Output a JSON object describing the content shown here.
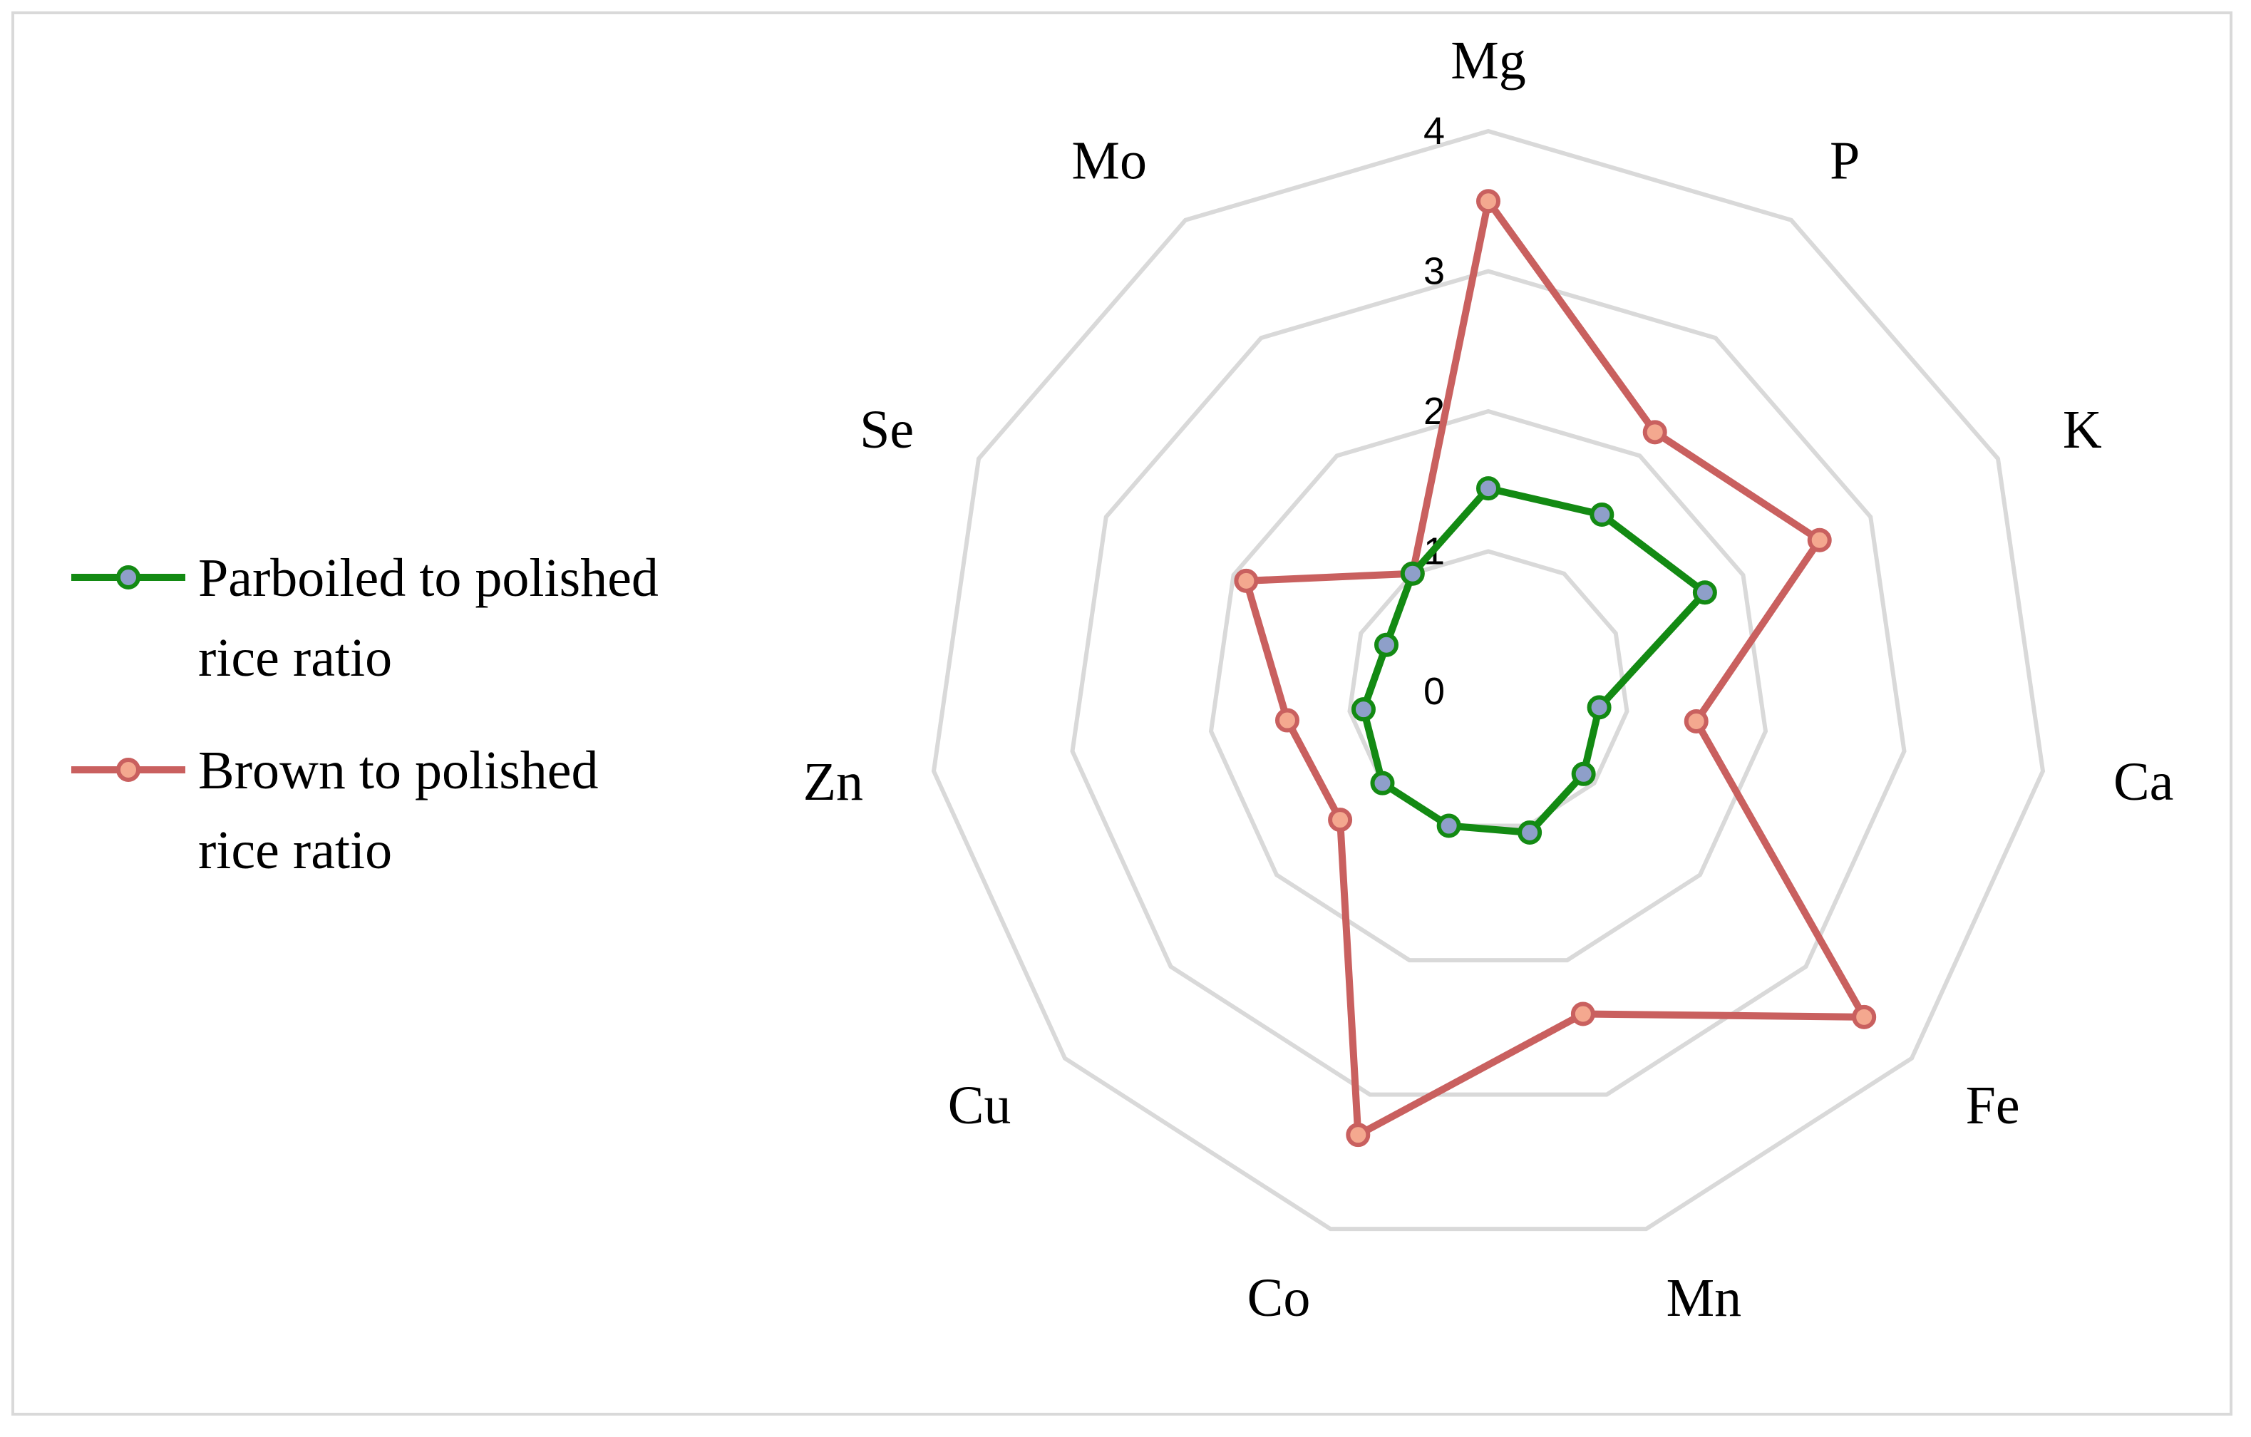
{
  "chart_data": {
    "type": "radar",
    "title": "",
    "categories": [
      "Mg",
      "P",
      "K",
      "Ca",
      "Fe",
      "Mn",
      "Co",
      "Cu",
      "Zn",
      "Se",
      "Mo"
    ],
    "rlim": [
      0,
      4
    ],
    "ticks": [
      "0",
      "1",
      "2",
      "3",
      "4"
    ],
    "grid": true,
    "legend_position": "left",
    "series": [
      {
        "name": "Parboiled to polished rice ratio",
        "legend_lines": [
          "Parboiled to polished",
          "rice ratio"
        ],
        "values": [
          1.45,
          1.5,
          1.7,
          0.8,
          0.9,
          1.05,
          1.0,
          1.0,
          0.9,
          0.8,
          1.0
        ],
        "line_color": "#138a13",
        "marker_fill": "#8e9fc9",
        "marker_edge": "#138a13"
      },
      {
        "name": "Brown to polished rice ratio",
        "legend_lines": [
          "Brown to polished",
          "rice ratio"
        ],
        "values": [
          3.5,
          2.2,
          2.6,
          1.5,
          3.55,
          2.4,
          3.3,
          1.4,
          1.45,
          1.9,
          1.0
        ],
        "line_color": "#c9605f",
        "marker_fill": "#f4a88f",
        "marker_edge": "#c9605f"
      }
    ]
  }
}
